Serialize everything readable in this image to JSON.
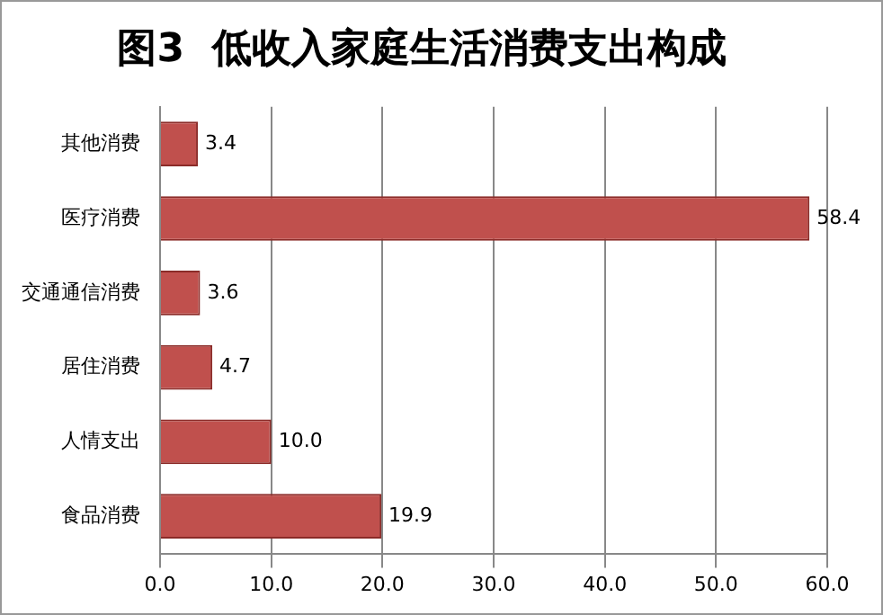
{
  "chart_data": {
    "type": "bar",
    "orientation": "horizontal",
    "title": "图3  低收入家庭生活消费支出构成",
    "categories": [
      "其他消费",
      "医疗消费",
      "交通通信消费",
      "居住消费",
      "人情支出",
      "食品消费"
    ],
    "values": [
      3.4,
      58.4,
      3.6,
      4.7,
      10.0,
      19.9
    ],
    "value_labels": [
      "3.4",
      "58.4",
      "3.6",
      "4.7",
      "10.0",
      "19.9"
    ],
    "color": "#c0504d",
    "xlim": [
      0,
      60
    ],
    "xticks": [
      {
        "value": 0,
        "label": "0.0"
      },
      {
        "value": 10,
        "label": "10.0"
      },
      {
        "value": 20,
        "label": "20.0"
      },
      {
        "value": 30,
        "label": "30.0"
      },
      {
        "value": 40,
        "label": "40.0"
      },
      {
        "value": 50,
        "label": "50.0"
      },
      {
        "value": 60,
        "label": "60.0"
      }
    ],
    "grid": "x"
  }
}
